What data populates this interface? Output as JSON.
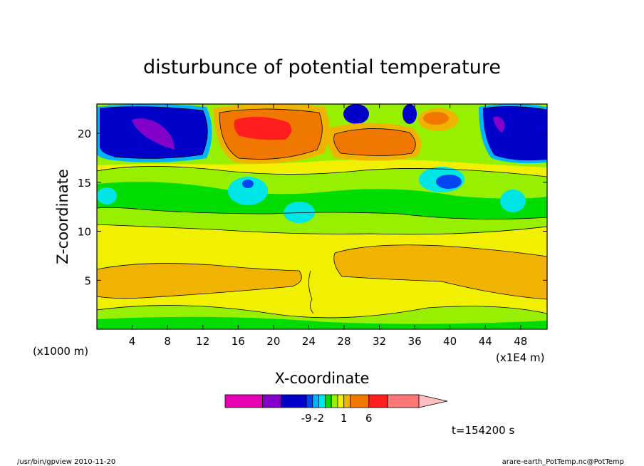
{
  "chart_data": {
    "type": "heatmap",
    "title": "disturbunce of potential temperature",
    "xlabel": "X-coordinate",
    "ylabel": "Z-coordinate",
    "x_units_note": "(x1000 m)",
    "x_scale_note": "(x1E4 m)",
    "xlim": [
      0,
      51
    ],
    "ylim": [
      0,
      23
    ],
    "x_ticks": [
      4,
      8,
      12,
      16,
      20,
      24,
      28,
      32,
      36,
      40,
      44,
      48
    ],
    "y_ticks": [
      5,
      10,
      15,
      20
    ],
    "colorbar": {
      "colors": [
        "#e600b4",
        "#8200c8",
        "#0000c8",
        "#0046f0",
        "#00b4ff",
        "#00e6e6",
        "#00dc00",
        "#96f000",
        "#f0f000",
        "#f0b400",
        "#f07800",
        "#ff1e1e",
        "#ff7878",
        "#ffbebe"
      ],
      "weights": [
        3,
        1.5,
        2,
        0.5,
        0.5,
        0.5,
        0.5,
        0.5,
        0.5,
        0.5,
        1.5,
        1.5,
        2.5,
        2
      ],
      "labels": [
        {
          "text": "-9",
          "after_box": 2
        },
        {
          "text": "-2",
          "after_box": 4
        },
        {
          "text": "1",
          "after_box": 8
        },
        {
          "text": "6",
          "after_box": 10
        }
      ]
    },
    "time_label": "t=154200 s"
  },
  "footer": {
    "left": "/usr/bin/gpview   2010-11-20",
    "right": "arare-earth_PotTemp.nc@PotTemp"
  }
}
